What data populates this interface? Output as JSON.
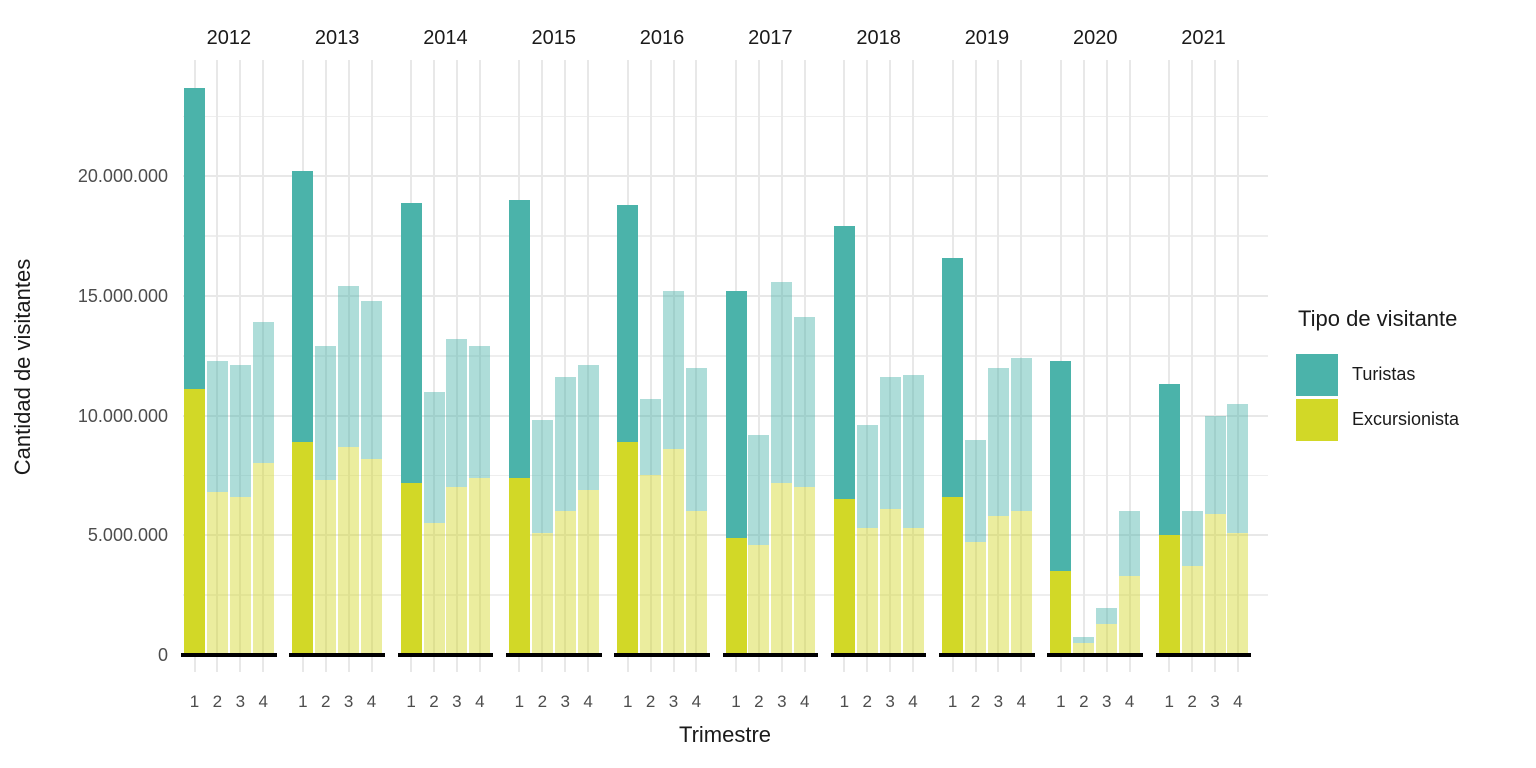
{
  "chart_data": {
    "type": "bar",
    "stacked": true,
    "faceted_by": "year",
    "xlabel": "Trimestre",
    "ylabel": "Cantidad de visitantes",
    "legend_title": "Tipo de visitante",
    "legend_position": "right",
    "grid": true,
    "background": "#ffffff",
    "quarters": [
      "1",
      "2",
      "3",
      "4"
    ],
    "highlight_quarter": "1",
    "muted_alpha": 0.45,
    "y_ticks": [
      {
        "value": 0,
        "label": "0"
      },
      {
        "value": 5000000,
        "label": "5.000.000"
      },
      {
        "value": 10000000,
        "label": "10.000.000"
      },
      {
        "value": 15000000,
        "label": "15.000.000"
      },
      {
        "value": 20000000,
        "label": "20.000.000"
      }
    ],
    "y_minor_ticks": [
      2500000,
      7500000,
      12500000,
      17500000,
      22500000
    ],
    "ylim": [
      0,
      24850000
    ],
    "series": [
      {
        "name": "Turistas",
        "color": "#4bb3aa"
      },
      {
        "name": "Excursionista",
        "color": "#d2d827"
      }
    ],
    "facets": [
      {
        "year": "2012",
        "excursionista": [
          11100000,
          6800000,
          6600000,
          8000000
        ],
        "turistas": [
          12600000,
          5500000,
          5500000,
          5900000
        ]
      },
      {
        "year": "2013",
        "excursionista": [
          8900000,
          7300000,
          8700000,
          8200000
        ],
        "turistas": [
          11300000,
          5600000,
          6700000,
          6600000
        ]
      },
      {
        "year": "2014",
        "excursionista": [
          7200000,
          5500000,
          7000000,
          7400000
        ],
        "turistas": [
          11700000,
          5500000,
          6200000,
          5500000
        ]
      },
      {
        "year": "2015",
        "excursionista": [
          7400000,
          5100000,
          6000000,
          6900000
        ],
        "turistas": [
          11600000,
          4700000,
          5600000,
          5200000
        ]
      },
      {
        "year": "2016",
        "excursionista": [
          8900000,
          7500000,
          8600000,
          6000000
        ],
        "turistas": [
          9900000,
          3200000,
          6600000,
          6000000
        ]
      },
      {
        "year": "2017",
        "excursionista": [
          4900000,
          4600000,
          7200000,
          7000000
        ],
        "turistas": [
          10300000,
          4600000,
          8400000,
          7100000
        ]
      },
      {
        "year": "2018",
        "excursionista": [
          6500000,
          5300000,
          6100000,
          5300000
        ],
        "turistas": [
          11400000,
          4300000,
          5500000,
          6400000
        ]
      },
      {
        "year": "2019",
        "excursionista": [
          6600000,
          4700000,
          5800000,
          6000000
        ],
        "turistas": [
          10000000,
          4300000,
          6200000,
          6400000
        ]
      },
      {
        "year": "2020",
        "excursionista": [
          3500000,
          500000,
          1300000,
          3300000
        ],
        "turistas": [
          8800000,
          250000,
          650000,
          2700000
        ]
      },
      {
        "year": "2021",
        "excursionista": [
          5000000,
          3700000,
          5900000,
          5100000
        ],
        "turistas": [
          6300000,
          2300000,
          4100000,
          5400000
        ]
      }
    ]
  }
}
